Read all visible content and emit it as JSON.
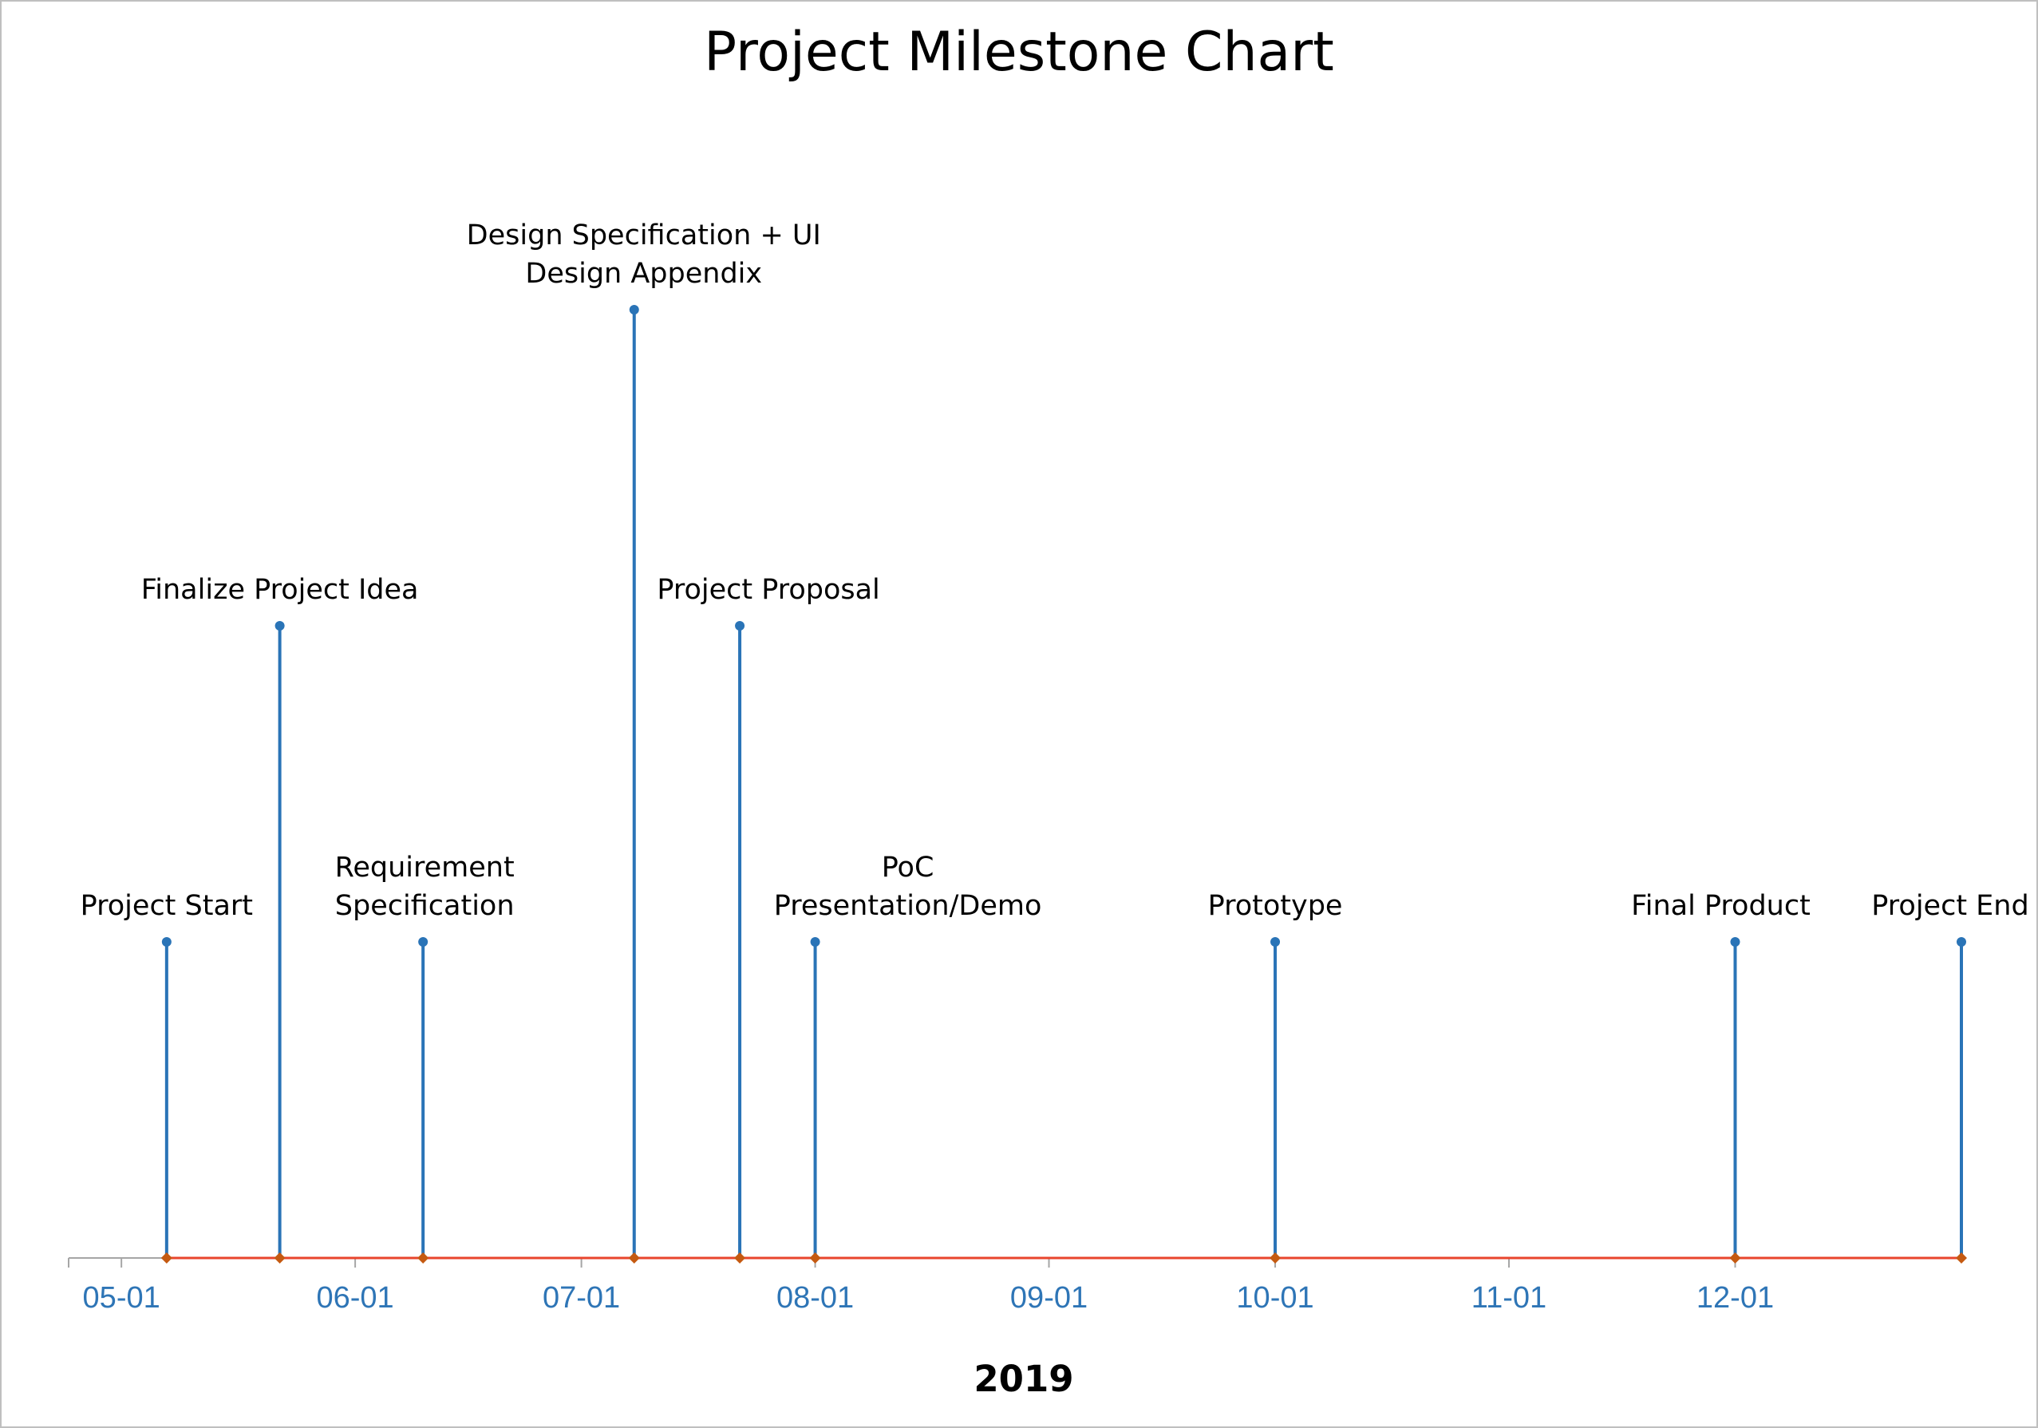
{
  "chart_data": {
    "type": "timeline",
    "title": "Project Milestone Chart",
    "xlabel": "2019",
    "ylabel": "",
    "xlim": [
      "2019-04-24",
      "2019-12-31"
    ],
    "x_ticks": [
      "2019-05-01",
      "2019-06-01",
      "2019-07-01",
      "2019-08-01",
      "2019-09-01",
      "2019-10-01",
      "2019-11-01",
      "2019-12-01"
    ],
    "x_tick_labels": [
      "05-01",
      "06-01",
      "07-01",
      "08-01",
      "09-01",
      "10-01",
      "11-01",
      "12-01"
    ],
    "ylim": [
      0,
      3
    ],
    "grid": false,
    "legend": "none",
    "colors": {
      "stem": "#2a74b7",
      "baseline": "#e8452c",
      "baseline_marker": "#c55a11",
      "tick_label": "#2e75b6"
    },
    "milestones": [
      {
        "label": "Project Start",
        "date": "2019-05-07",
        "height": 1
      },
      {
        "label": "Finalize Project Idea",
        "date": "2019-05-22",
        "height": 2
      },
      {
        "label": "Requirement Specification",
        "date": "2019-06-10",
        "height": 1
      },
      {
        "label": "Design Specification + UI Design Appendix",
        "date": "2019-07-08",
        "height": 3
      },
      {
        "label": "Project Proposal",
        "date": "2019-07-22",
        "height": 2
      },
      {
        "label": "PoC Presentation/Demo",
        "date": "2019-08-01",
        "height": 1
      },
      {
        "label": "Prototype",
        "date": "2019-10-01",
        "height": 1
      },
      {
        "label": "Final Product",
        "date": "2019-12-01",
        "height": 1
      },
      {
        "label": "Project End",
        "date": "2019-12-31",
        "height": 1
      }
    ]
  }
}
